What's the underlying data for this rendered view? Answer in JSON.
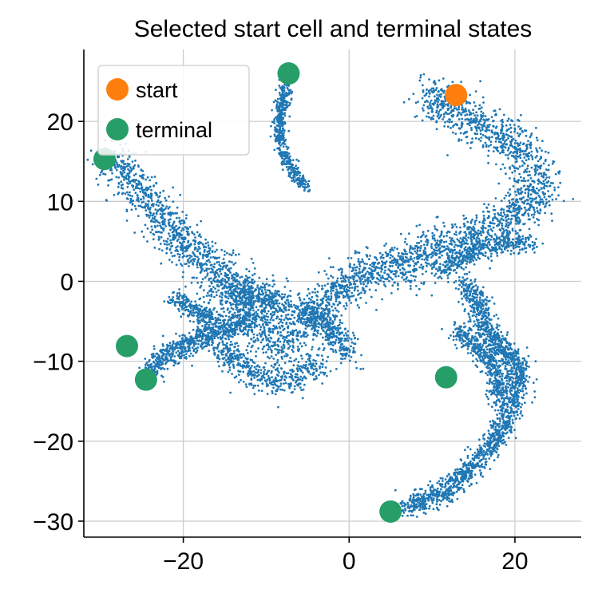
{
  "chart_data": {
    "type": "scatter",
    "title": "Selected start cell and terminal states",
    "xlabel": "",
    "ylabel": "",
    "xlim": [
      -32,
      28
    ],
    "ylim": [
      -32,
      29
    ],
    "xticks": [
      -20,
      0,
      20
    ],
    "yticks": [
      -30,
      -20,
      -10,
      0,
      10,
      20
    ],
    "xtick_labels": [
      "−20",
      "0",
      "20"
    ],
    "ytick_labels": [
      "−30",
      "−20",
      "−10",
      "0",
      "10",
      "20"
    ],
    "grid": true,
    "legend": {
      "position": "upper-left"
    },
    "background_color": "#1f77b4",
    "background_trajectories": [
      {
        "path": [
          [
            -29,
            15.5
          ],
          [
            -26,
            12
          ],
          [
            -22.5,
            8
          ],
          [
            -20,
            5
          ],
          [
            -17.5,
            2.5
          ],
          [
            -15,
            0
          ],
          [
            -13,
            -2.5
          ],
          [
            -11,
            -5
          ],
          [
            -9,
            -7.5
          ],
          [
            -7,
            -7
          ],
          [
            -5,
            -5
          ],
          [
            -3,
            -3
          ],
          [
            -1,
            -1
          ],
          [
            1,
            1
          ],
          [
            3,
            1.5
          ],
          [
            6,
            2
          ],
          [
            9,
            3.5
          ],
          [
            12,
            4.5
          ],
          [
            15,
            5.5
          ],
          [
            18,
            7
          ],
          [
            20,
            8.5
          ],
          [
            22,
            10
          ],
          [
            23,
            12
          ],
          [
            22,
            14.5
          ],
          [
            20.5,
            16.5
          ],
          [
            18,
            18.5
          ],
          [
            15,
            20
          ],
          [
            13,
            21
          ],
          [
            11,
            22
          ],
          [
            10,
            23
          ],
          [
            12,
            23
          ]
        ],
        "width": 3.2,
        "count": 3600
      },
      {
        "path": [
          [
            -14,
            -2
          ],
          [
            -12,
            -1
          ],
          [
            -10,
            -2
          ],
          [
            -8,
            -3
          ]
        ],
        "width": 2.5,
        "count": 350
      },
      {
        "path": [
          [
            -16,
            -8
          ],
          [
            -13,
            -10
          ],
          [
            -11,
            -12
          ],
          [
            -8,
            -12.5
          ],
          [
            -5.5,
            -11.5
          ],
          [
            -3.5,
            -10
          ]
        ],
        "width": 2.2,
        "count": 500
      },
      {
        "path": [
          [
            -6,
            -3
          ],
          [
            -3,
            -5
          ],
          [
            -1,
            -7.5
          ],
          [
            0,
            -9.5
          ]
        ],
        "width": 2.0,
        "count": 350
      },
      {
        "path": [
          [
            -12,
            -5
          ],
          [
            -15,
            -6
          ],
          [
            -18,
            -7
          ],
          [
            -20.5,
            -8.5
          ],
          [
            -22.5,
            -9.5
          ],
          [
            -24,
            -11.5
          ]
        ],
        "width": 1.6,
        "count": 650
      },
      {
        "path": [
          [
            -21,
            -2
          ],
          [
            -18,
            -4
          ],
          [
            -16,
            -5
          ]
        ],
        "width": 1.5,
        "count": 250
      },
      {
        "path": [
          [
            11,
            1
          ],
          [
            15,
            4
          ],
          [
            19,
            5
          ],
          [
            22,
            4.5
          ]
        ],
        "width": 1.5,
        "count": 400
      },
      {
        "path": [
          [
            14,
            0
          ],
          [
            15,
            -2
          ],
          [
            16,
            -4
          ],
          [
            17,
            -7
          ],
          [
            19,
            -9
          ],
          [
            20.5,
            -11
          ],
          [
            20,
            -14
          ],
          [
            19,
            -17
          ],
          [
            17.5,
            -20
          ],
          [
            16,
            -22
          ],
          [
            14,
            -24
          ],
          [
            12,
            -26
          ],
          [
            9,
            -27.5
          ],
          [
            6.5,
            -28.3
          ]
        ],
        "width": 1.8,
        "count": 1700
      },
      {
        "path": [
          [
            13,
            -6
          ],
          [
            15,
            -8
          ],
          [
            17,
            -10
          ],
          [
            18,
            -12
          ],
          [
            18,
            -15
          ]
        ],
        "width": 1.5,
        "count": 450
      },
      {
        "path": [
          [
            -5,
            11.5
          ],
          [
            -7,
            14
          ],
          [
            -8.3,
            17
          ],
          [
            -8.4,
            20
          ],
          [
            -8,
            22.5
          ],
          [
            -7.6,
            24.5
          ]
        ],
        "width": 0.9,
        "count": 500
      }
    ],
    "series": [
      {
        "name": "start",
        "color": "#ff7f0e",
        "points": [
          [
            12.9,
            23.3
          ]
        ]
      },
      {
        "name": "terminal",
        "color": "#279e68",
        "points": [
          [
            -7.3,
            26.0
          ],
          [
            -29.5,
            15.3
          ],
          [
            -26.8,
            -8.1
          ],
          [
            -24.5,
            -12.3
          ],
          [
            11.7,
            -12.0
          ],
          [
            5.0,
            -28.8
          ]
        ]
      }
    ]
  }
}
